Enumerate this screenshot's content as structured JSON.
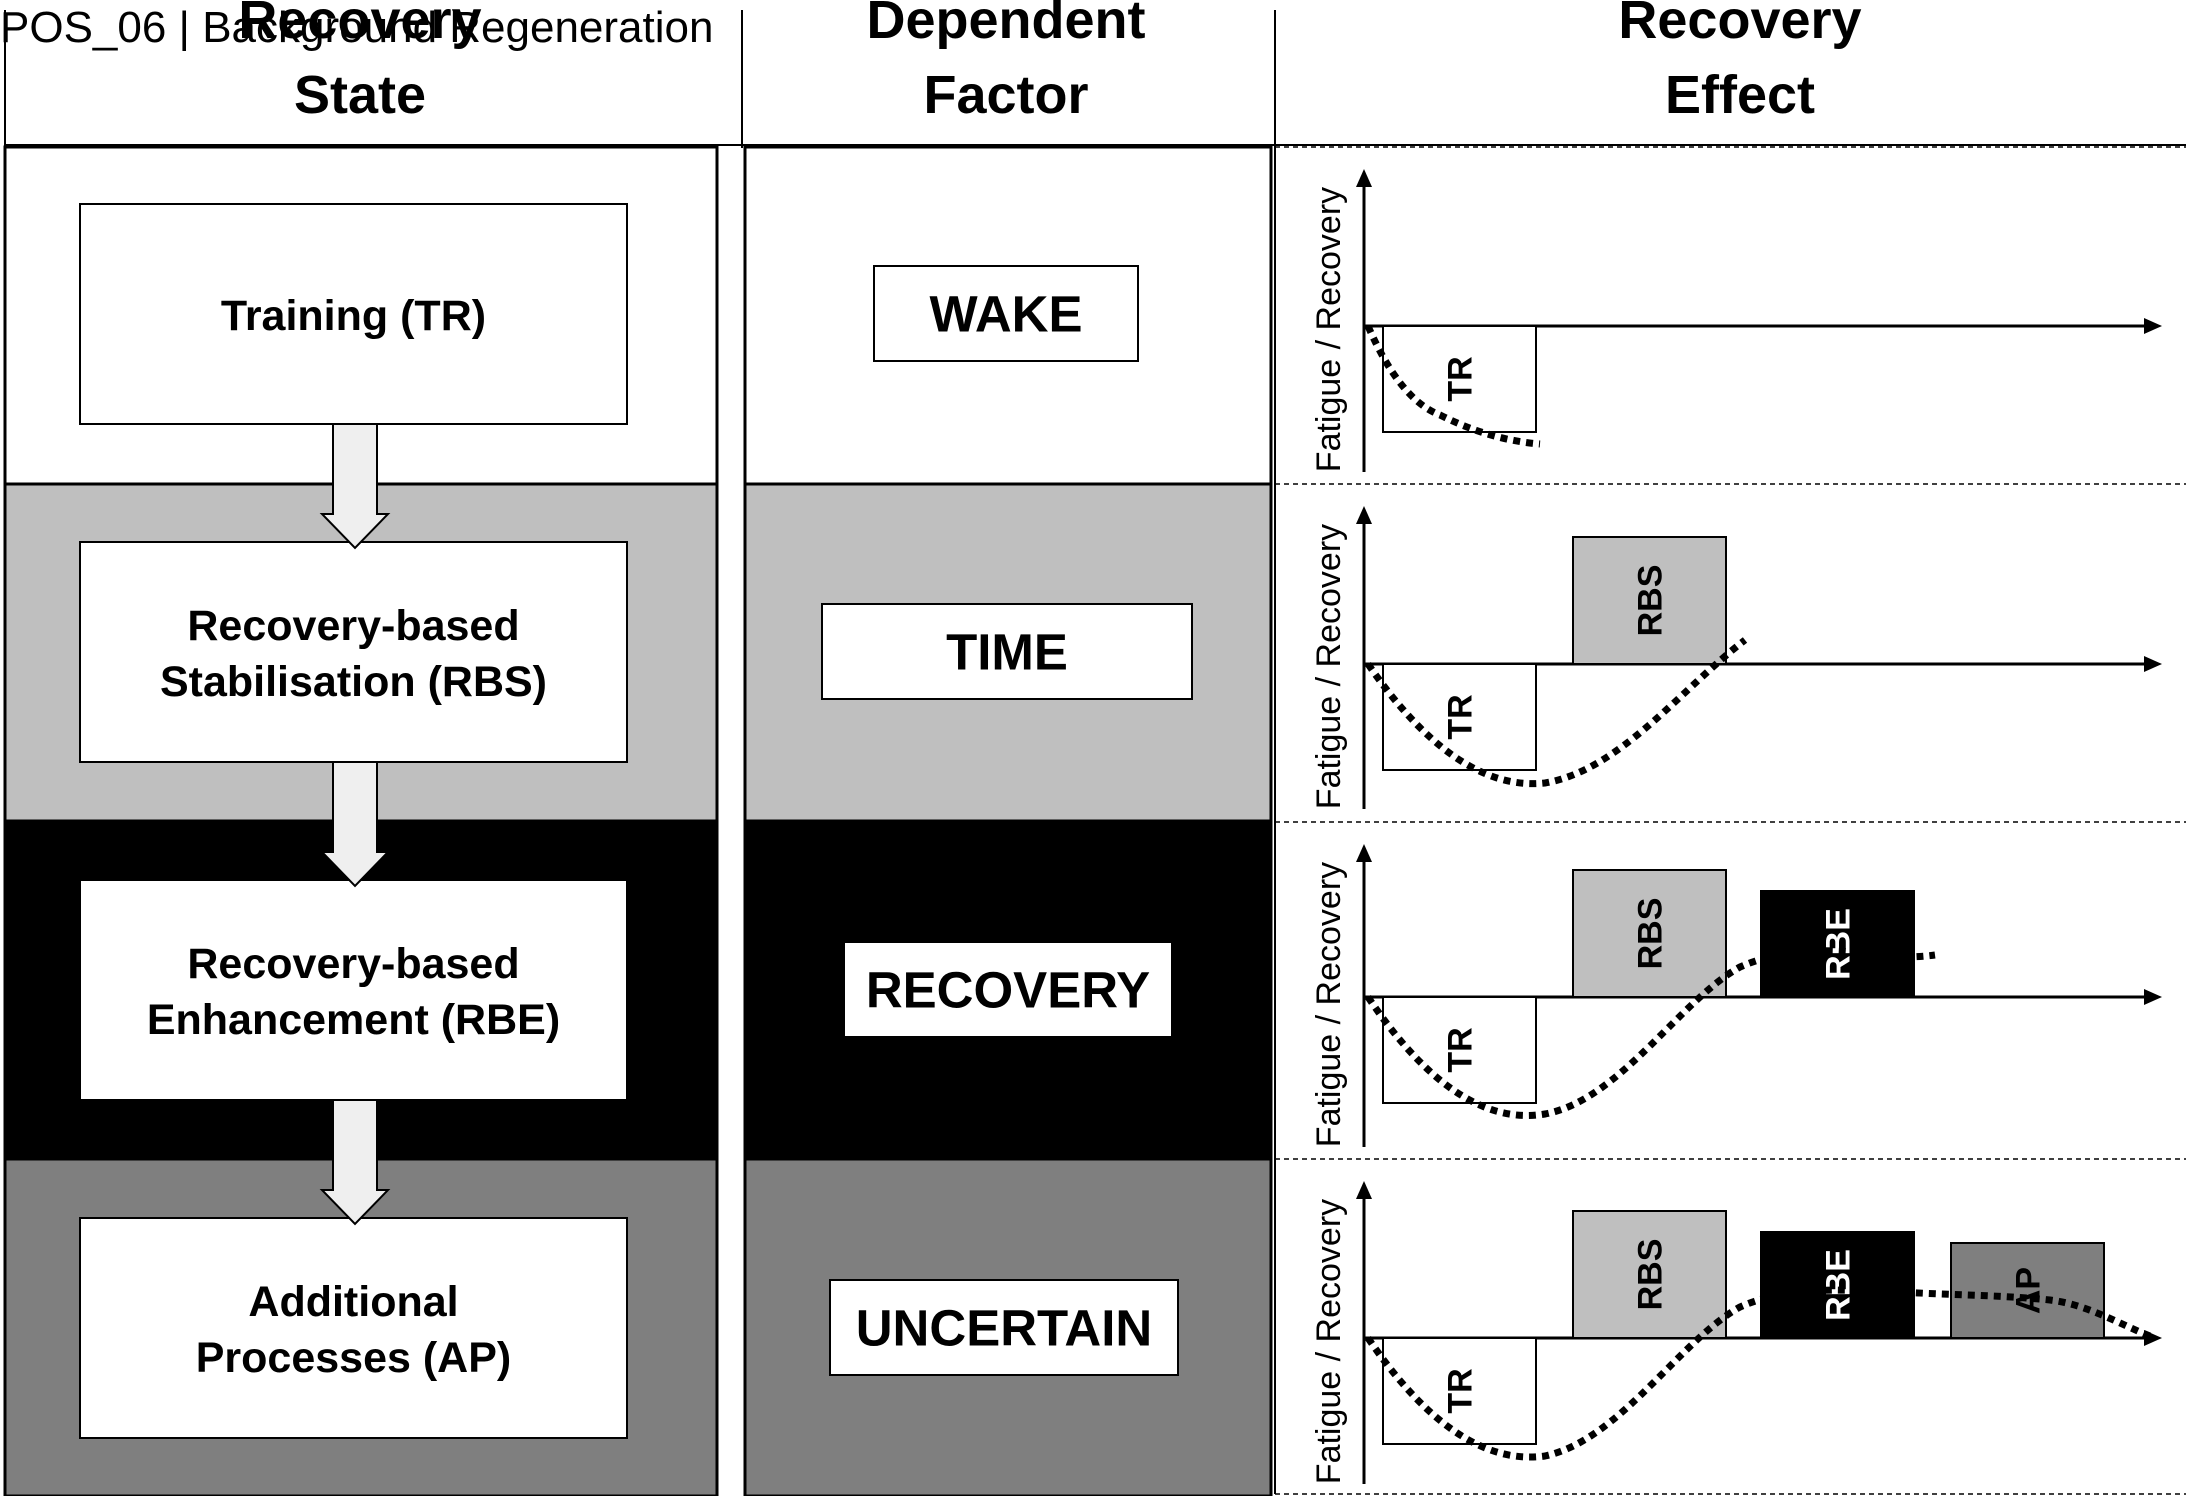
{
  "breadcrumb": "POS_06 | Background Regeneration",
  "headers": {
    "state": [
      "Recovery",
      "State"
    ],
    "factor": [
      "Dependent",
      "Factor"
    ],
    "effect": [
      "Recovery",
      "Effect"
    ]
  },
  "colors": {
    "row_backgrounds": [
      "#ffffff",
      "#bfbfbf",
      "#000000",
      "#7f7f7f"
    ],
    "box_fill": "#ffffff",
    "arrow_fill": "#efefef",
    "bar_fills": {
      "TR": "#ffffff",
      "RBS": "#bfbfbf",
      "RBE": "#000000",
      "AP": "#7f7f7f"
    },
    "bar_text": {
      "TR": "#000000",
      "RBS": "#000000",
      "RBE": "#ffffff",
      "AP": "#000000"
    }
  },
  "rows": [
    {
      "state_lines": [
        "Training (TR)"
      ],
      "factor": "WAKE",
      "bars": [
        "TR"
      ]
    },
    {
      "state_lines": [
        "Recovery-based",
        "Stabilisation (RBS)"
      ],
      "factor": "TIME",
      "bars": [
        "TR",
        "RBS"
      ]
    },
    {
      "state_lines": [
        "Recovery-based",
        "Enhancement (RBE)"
      ],
      "factor": "RECOVERY",
      "bars": [
        "TR",
        "RBS",
        "RBE"
      ]
    },
    {
      "state_lines": [
        "Additional",
        "Processes (AP)"
      ],
      "factor": "UNCERTAIN",
      "bars": [
        "TR",
        "RBS",
        "RBE",
        "AP"
      ]
    }
  ],
  "chart_axis_label": "Fatigue / Recovery"
}
